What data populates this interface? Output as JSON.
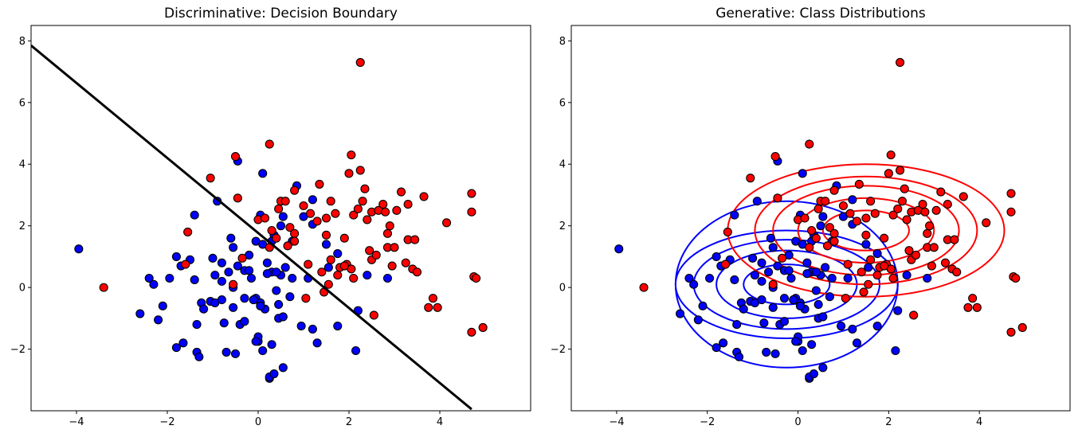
{
  "chart_data": [
    {
      "type": "scatter",
      "title": "Discriminative: Decision Boundary",
      "xlabel": "",
      "ylabel": "",
      "xlim": [
        -5,
        6
      ],
      "ylim": [
        -4,
        8.5
      ],
      "xticks": [
        -4,
        -2,
        0,
        2,
        4
      ],
      "yticks": [
        -2,
        0,
        2,
        4,
        6,
        8
      ],
      "grid": false,
      "boundary_line": {
        "x": [
          -5,
          4.7
        ],
        "y": [
          7.85,
          -3.95
        ],
        "color": "#000000"
      },
      "series": [
        {
          "color": "#0000ff",
          "points": [
            [
              -3.95,
              1.25
            ],
            [
              -2.6,
              -0.85
            ],
            [
              -2.4,
              0.3
            ],
            [
              -2.3,
              0.1
            ],
            [
              -2.2,
              -1.05
            ],
            [
              -2.1,
              -0.6
            ],
            [
              -1.95,
              0.3
            ],
            [
              -1.8,
              1.0
            ],
            [
              -1.7,
              0.7
            ],
            [
              -1.8,
              -1.95
            ],
            [
              -1.65,
              -1.8
            ],
            [
              -1.5,
              0.9
            ],
            [
              -1.35,
              -1.2
            ],
            [
              -1.4,
              2.35
            ],
            [
              -1.4,
              0.25
            ],
            [
              -1.35,
              -2.1
            ],
            [
              -1.3,
              -2.25
            ],
            [
              -1.25,
              -0.5
            ],
            [
              -1.2,
              -0.7
            ],
            [
              -1.05,
              -0.45
            ],
            [
              -1.0,
              0.95
            ],
            [
              -0.95,
              0.4
            ],
            [
              -0.95,
              -0.5
            ],
            [
              -0.9,
              2.8
            ],
            [
              -0.8,
              -0.4
            ],
            [
              -0.8,
              0.2
            ],
            [
              -0.8,
              0.8
            ],
            [
              -0.75,
              -1.15
            ],
            [
              -0.7,
              -2.1
            ],
            [
              -0.65,
              0.5
            ],
            [
              -0.6,
              1.6
            ],
            [
              -0.55,
              1.3
            ],
            [
              -0.55,
              -0.65
            ],
            [
              -0.55,
              0.0
            ],
            [
              -0.5,
              -2.15
            ],
            [
              -0.45,
              0.7
            ],
            [
              -0.4,
              -1.2
            ],
            [
              -0.3,
              0.55
            ],
            [
              -0.3,
              -1.1
            ],
            [
              -0.3,
              -0.35
            ],
            [
              -0.2,
              1.05
            ],
            [
              -0.2,
              0.55
            ],
            [
              -0.45,
              4.1
            ],
            [
              -0.15,
              0.3
            ],
            [
              -0.1,
              -0.4
            ],
            [
              -0.05,
              1.5
            ],
            [
              0.0,
              -1.75
            ],
            [
              0.0,
              -1.6
            ],
            [
              -0.05,
              -0.35
            ],
            [
              0.05,
              2.35
            ],
            [
              0.05,
              -0.5
            ],
            [
              0.1,
              3.7
            ],
            [
              0.1,
              -2.05
            ],
            [
              0.15,
              -0.7
            ],
            [
              0.2,
              0.8
            ],
            [
              0.25,
              -2.95
            ],
            [
              0.3,
              -1.85
            ],
            [
              0.3,
              0.5
            ],
            [
              0.35,
              1.7
            ],
            [
              0.4,
              -0.1
            ],
            [
              0.45,
              -1.0
            ],
            [
              0.45,
              -0.55
            ],
            [
              0.5,
              0.4
            ],
            [
              0.5,
              2.0
            ],
            [
              0.55,
              -0.95
            ],
            [
              0.55,
              2.3
            ],
            [
              0.7,
              -0.3
            ],
            [
              0.75,
              1.5
            ],
            [
              0.85,
              3.3
            ],
            [
              0.95,
              -1.25
            ],
            [
              1.0,
              2.3
            ],
            [
              1.1,
              0.3
            ],
            [
              1.2,
              2.05
            ],
            [
              1.2,
              2.85
            ],
            [
              1.2,
              -1.35
            ],
            [
              1.3,
              -1.8
            ],
            [
              1.5,
              1.4
            ],
            [
              1.55,
              0.65
            ],
            [
              1.75,
              1.1
            ],
            [
              1.75,
              -1.25
            ],
            [
              2.15,
              -2.05
            ],
            [
              2.2,
              -0.75
            ],
            [
              2.4,
              0.4
            ],
            [
              2.85,
              0.3
            ],
            [
              0.25,
              -2.9
            ],
            [
              0.35,
              -2.8
            ],
            [
              0.55,
              -2.6
            ],
            [
              -0.05,
              -1.75
            ],
            [
              0.3,
              1.5
            ],
            [
              0.1,
              1.4
            ],
            [
              0.6,
              0.65
            ],
            [
              0.4,
              0.5
            ],
            [
              0.75,
              0.3
            ],
            [
              -0.1,
              -0.4
            ],
            [
              0.05,
              -0.6
            ],
            [
              0.2,
              0.45
            ]
          ]
        },
        {
          "color": "#ff0000",
          "points": [
            [
              -3.4,
              0.0
            ],
            [
              -1.05,
              3.55
            ],
            [
              -0.5,
              4.25
            ],
            [
              -0.45,
              2.9
            ],
            [
              -0.35,
              0.95
            ],
            [
              -0.55,
              0.1
            ],
            [
              -1.6,
              0.75
            ],
            [
              -1.55,
              1.8
            ],
            [
              0.0,
              2.2
            ],
            [
              0.15,
              2.25
            ],
            [
              0.25,
              4.65
            ],
            [
              0.25,
              1.3
            ],
            [
              0.3,
              1.85
            ],
            [
              0.4,
              1.6
            ],
            [
              0.45,
              2.55
            ],
            [
              0.5,
              2.8
            ],
            [
              0.6,
              2.8
            ],
            [
              0.65,
              1.35
            ],
            [
              0.7,
              1.95
            ],
            [
              0.8,
              1.75
            ],
            [
              0.8,
              3.15
            ],
            [
              1.0,
              2.65
            ],
            [
              1.05,
              -0.35
            ],
            [
              1.1,
              0.75
            ],
            [
              1.15,
              2.4
            ],
            [
              1.3,
              2.15
            ],
            [
              1.35,
              3.35
            ],
            [
              1.4,
              0.5
            ],
            [
              1.45,
              -0.15
            ],
            [
              1.5,
              1.7
            ],
            [
              1.5,
              2.25
            ],
            [
              1.55,
              0.1
            ],
            [
              1.6,
              0.9
            ],
            [
              1.6,
              2.8
            ],
            [
              1.7,
              2.4
            ],
            [
              1.75,
              0.4
            ],
            [
              1.8,
              0.65
            ],
            [
              1.9,
              1.6
            ],
            [
              1.95,
              0.75
            ],
            [
              2.0,
              3.7
            ],
            [
              2.05,
              4.3
            ],
            [
              2.05,
              0.6
            ],
            [
              2.1,
              2.35
            ],
            [
              2.1,
              0.3
            ],
            [
              2.2,
              2.55
            ],
            [
              2.25,
              7.3
            ],
            [
              2.25,
              3.8
            ],
            [
              2.3,
              2.8
            ],
            [
              2.35,
              3.2
            ],
            [
              2.4,
              2.2
            ],
            [
              2.45,
              1.2
            ],
            [
              2.5,
              0.9
            ],
            [
              2.5,
              2.45
            ],
            [
              2.55,
              -0.9
            ],
            [
              2.6,
              1.05
            ],
            [
              2.65,
              2.5
            ],
            [
              2.75,
              2.7
            ],
            [
              2.8,
              2.45
            ],
            [
              2.85,
              1.75
            ],
            [
              2.85,
              1.3
            ],
            [
              2.9,
              2.0
            ],
            [
              2.95,
              0.7
            ],
            [
              3.0,
              1.3
            ],
            [
              3.05,
              2.5
            ],
            [
              3.15,
              3.1
            ],
            [
              3.25,
              0.8
            ],
            [
              3.3,
              2.7
            ],
            [
              3.3,
              1.55
            ],
            [
              3.4,
              0.6
            ],
            [
              3.45,
              1.55
            ],
            [
              3.5,
              0.5
            ],
            [
              3.65,
              2.95
            ],
            [
              3.75,
              -0.65
            ],
            [
              3.85,
              -0.35
            ],
            [
              3.95,
              -0.65
            ],
            [
              4.15,
              2.1
            ],
            [
              4.7,
              3.05
            ],
            [
              4.7,
              2.45
            ],
            [
              4.75,
              0.35
            ],
            [
              4.8,
              0.3
            ],
            [
              4.7,
              -1.45
            ],
            [
              4.95,
              -1.3
            ],
            [
              0.8,
              1.5
            ],
            [
              1.9,
              0.7
            ]
          ]
        }
      ]
    },
    {
      "type": "scatter",
      "title": "Generative: Class Distributions",
      "xlabel": "",
      "ylabel": "",
      "xlim": [
        -5,
        6
      ],
      "ylim": [
        -4,
        8.5
      ],
      "xticks": [
        -4,
        -2,
        0,
        2,
        4
      ],
      "yticks": [
        -2,
        0,
        2,
        4,
        6,
        8
      ],
      "grid": false,
      "contours": [
        {
          "color": "#0000ff",
          "center": [
            -0.25,
            0.1
          ],
          "radii": [
            [
              0.95,
              0.65
            ],
            [
              1.55,
              1.1
            ],
            [
              2.05,
              1.45
            ],
            [
              2.45,
              1.75
            ],
            [
              2.45,
              2.7
            ]
          ]
        },
        {
          "color": "#ff0000",
          "center": [
            1.5,
            1.85
          ],
          "radii": [
            [
              0.95,
              0.65
            ],
            [
              1.5,
              1.05
            ],
            [
              2.05,
              1.45
            ],
            [
              2.45,
              1.75
            ],
            [
              3.05,
              2.15
            ]
          ]
        }
      ]
    }
  ]
}
